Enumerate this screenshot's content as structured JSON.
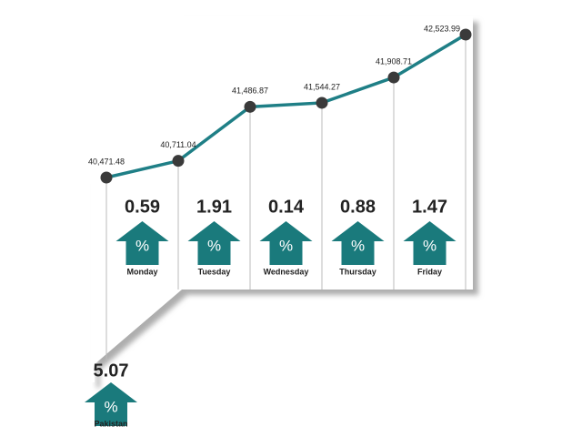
{
  "chart_data": {
    "type": "line",
    "series": [
      {
        "color": "#1f7f86",
        "values": [
          40471.48,
          40711.04,
          41486.87,
          41544.27,
          41908.71,
          42523.99
        ],
        "value_labels": [
          "40,471.48",
          "40,711.04",
          "41,486.87",
          "41,544.27",
          "41,908.71",
          "42,523.99"
        ]
      }
    ],
    "changes": {
      "categories": [
        "Monday",
        "Tuesday",
        "Wednesday",
        "Thursday",
        "Friday"
      ],
      "values": [
        0.59,
        1.91,
        0.14,
        0.88,
        1.47
      ],
      "color": "#1a7a7c"
    },
    "total": {
      "label": "Pakistan",
      "value": 5.07
    },
    "symbol": "%"
  }
}
